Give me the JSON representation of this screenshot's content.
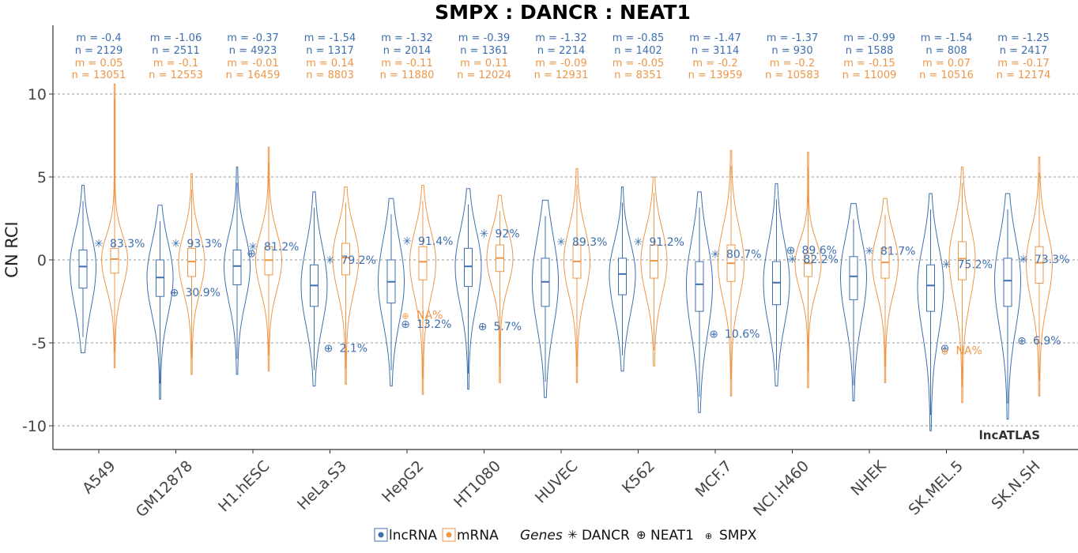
{
  "chart_data": {
    "type": "violin",
    "title": "SMPX : DANCR : NEAT1",
    "ylabel": "CN RCI",
    "xlabel": "",
    "ylim": [
      -11,
      13.7
    ],
    "yticks": [
      10,
      5,
      0,
      -5,
      -10
    ],
    "ytick_labels": [
      "10",
      "5",
      "0",
      "-5",
      "-10"
    ],
    "grid": "horizontal dashed",
    "watermark": "lncATLAS",
    "colors": {
      "lncRNA": "#3d6faf",
      "mRNA": "#ee9645"
    },
    "legend": {
      "position": "bottom",
      "fill_entries": [
        "lncRNA",
        "mRNA"
      ],
      "genes_title": "Genes",
      "genes": [
        {
          "name": "DANCR",
          "symbol": "✳"
        },
        {
          "name": "NEAT1",
          "symbol": "⊕"
        },
        {
          "name": "SMPX",
          "symbol": "⊕"
        }
      ]
    },
    "categories": [
      "A549",
      "GM12878",
      "H1.hESC",
      "HeLa.S3",
      "HepG2",
      "HT1080",
      "HUVEC",
      "K562",
      "MCF.7",
      "NCI.H460",
      "NHEK",
      "SK.MEL.5",
      "SK.N.SH"
    ],
    "stats": [
      {
        "lnc_m": "m = -0.4",
        "lnc_n": "n = 2129",
        "mrna_m": "m = 0.05",
        "mrna_n": "n = 13051"
      },
      {
        "lnc_m": "m = -1.06",
        "lnc_n": "n = 2511",
        "mrna_m": "m = -0.1",
        "mrna_n": "n = 12553"
      },
      {
        "lnc_m": "m = -0.37",
        "lnc_n": "n = 4923",
        "mrna_m": "m = -0.01",
        "mrna_n": "n = 16459"
      },
      {
        "lnc_m": "m = -1.54",
        "lnc_n": "n = 1317",
        "mrna_m": "m = 0.14",
        "mrna_n": "n = 8803"
      },
      {
        "lnc_m": "m = -1.32",
        "lnc_n": "n = 2014",
        "mrna_m": "m = -0.11",
        "mrna_n": "n = 11880"
      },
      {
        "lnc_m": "m = -0.39",
        "lnc_n": "n = 1361",
        "mrna_m": "m = 0.11",
        "mrna_n": "n = 12024"
      },
      {
        "lnc_m": "m = -1.32",
        "lnc_n": "n = 2214",
        "mrna_m": "m = -0.09",
        "mrna_n": "n = 12931"
      },
      {
        "lnc_m": "m = -0.85",
        "lnc_n": "n = 1402",
        "mrna_m": "m = -0.05",
        "mrna_n": "n = 8351"
      },
      {
        "lnc_m": "m = -1.47",
        "lnc_n": "n = 3114",
        "mrna_m": "m = -0.2",
        "mrna_n": "n = 13959"
      },
      {
        "lnc_m": "m = -1.37",
        "lnc_n": "n = 930",
        "mrna_m": "m = -0.2",
        "mrna_n": "n = 10583"
      },
      {
        "lnc_m": "m = -0.99",
        "lnc_n": "n = 1588",
        "mrna_m": "m = -0.15",
        "mrna_n": "n = 11009"
      },
      {
        "lnc_m": "m = -1.54",
        "lnc_n": "n = 808",
        "mrna_m": "m = 0.07",
        "mrna_n": "n = 10516"
      },
      {
        "lnc_m": "m = -1.25",
        "lnc_n": "n = 2417",
        "mrna_m": "m = -0.17",
        "mrna_n": "n = 12174"
      }
    ],
    "series": [
      {
        "name": "lncRNA",
        "boxes": [
          {
            "median": -0.4,
            "q1": -1.7,
            "q3": 0.6,
            "min": -5.6,
            "max": 4.5
          },
          {
            "median": -1.06,
            "q1": -2.2,
            "q3": 0.0,
            "min": -8.4,
            "max": 3.3
          },
          {
            "median": -0.37,
            "q1": -1.5,
            "q3": 0.6,
            "min": -6.9,
            "max": 5.6
          },
          {
            "median": -1.54,
            "q1": -2.8,
            "q3": -0.3,
            "min": -7.6,
            "max": 4.1
          },
          {
            "median": -1.32,
            "q1": -2.6,
            "q3": 0.0,
            "min": -7.6,
            "max": 3.7
          },
          {
            "median": -0.39,
            "q1": -1.6,
            "q3": 0.7,
            "min": -7.8,
            "max": 4.3
          },
          {
            "median": -1.32,
            "q1": -2.8,
            "q3": 0.1,
            "min": -8.3,
            "max": 3.6
          },
          {
            "median": -0.85,
            "q1": -2.1,
            "q3": 0.1,
            "min": -6.7,
            "max": 4.4
          },
          {
            "median": -1.47,
            "q1": -3.1,
            "q3": -0.1,
            "min": -9.2,
            "max": 4.1
          },
          {
            "median": -1.37,
            "q1": -2.7,
            "q3": -0.1,
            "min": -7.6,
            "max": 4.6
          },
          {
            "median": -0.99,
            "q1": -2.4,
            "q3": 0.2,
            "min": -8.5,
            "max": 3.4
          },
          {
            "median": -1.54,
            "q1": -3.1,
            "q3": -0.3,
            "min": -10.3,
            "max": 4.0
          },
          {
            "median": -1.25,
            "q1": -2.8,
            "q3": 0.1,
            "min": -9.6,
            "max": 4.0
          }
        ]
      },
      {
        "name": "mRNA",
        "boxes": [
          {
            "median": 0.05,
            "q1": -0.8,
            "q3": 0.7,
            "min": -6.5,
            "max": 10.6
          },
          {
            "median": -0.1,
            "q1": -1.0,
            "q3": 0.7,
            "min": -6.9,
            "max": 5.2
          },
          {
            "median": -0.01,
            "q1": -0.9,
            "q3": 0.8,
            "min": -6.7,
            "max": 6.8
          },
          {
            "median": 0.14,
            "q1": -0.9,
            "q3": 1.0,
            "min": -7.5,
            "max": 4.4
          },
          {
            "median": -0.11,
            "q1": -1.2,
            "q3": 0.8,
            "min": -8.1,
            "max": 4.5
          },
          {
            "median": 0.11,
            "q1": -0.7,
            "q3": 0.9,
            "min": -7.4,
            "max": 3.9
          },
          {
            "median": -0.09,
            "q1": -1.1,
            "q3": 0.9,
            "min": -7.4,
            "max": 5.5
          },
          {
            "median": -0.05,
            "q1": -1.1,
            "q3": 0.9,
            "min": -6.4,
            "max": 5.0
          },
          {
            "median": -0.2,
            "q1": -1.3,
            "q3": 0.9,
            "min": -8.2,
            "max": 6.6
          },
          {
            "median": -0.2,
            "q1": -1.0,
            "q3": 0.4,
            "min": -7.7,
            "max": 6.5
          },
          {
            "median": -0.15,
            "q1": -1.1,
            "q3": 0.7,
            "min": -7.4,
            "max": 3.7
          },
          {
            "median": 0.07,
            "q1": -1.2,
            "q3": 1.1,
            "min": -8.6,
            "max": 5.6
          },
          {
            "median": -0.17,
            "q1": -1.4,
            "q3": 0.8,
            "min": -8.2,
            "max": 6.2
          }
        ]
      }
    ],
    "gene_markers": [
      {
        "gene": "DANCR",
        "category": "A549",
        "y": 1.0,
        "label": "83.3%",
        "color": "lncRNA"
      },
      {
        "gene": "DANCR",
        "category": "GM12878",
        "y": 1.0,
        "label": "93.3%",
        "color": "lncRNA"
      },
      {
        "gene": "NEAT1",
        "category": "GM12878",
        "y": -1.95,
        "label": "30.9%",
        "color": "lncRNA"
      },
      {
        "gene": "DANCR",
        "category": "H1.hESC",
        "y": 0.8,
        "label": "81.2%",
        "color": "lncRNA"
      },
      {
        "gene": "NEAT1",
        "category": "H1.hESC",
        "y": 0.4,
        "label": "",
        "color": "lncRNA"
      },
      {
        "gene": "DANCR",
        "category": "HeLa.S3",
        "y": 0.0,
        "label": "79.2%",
        "color": "lncRNA"
      },
      {
        "gene": "NEAT1",
        "category": "HeLa.S3",
        "y": -5.3,
        "label": "2.1%",
        "color": "lncRNA"
      },
      {
        "gene": "DANCR",
        "category": "HepG2",
        "y": 1.15,
        "label": "91.4%",
        "color": "lncRNA"
      },
      {
        "gene": "SMPX",
        "category": "HepG2",
        "y": -3.3,
        "label": "NA%",
        "color": "mRNA"
      },
      {
        "gene": "NEAT1",
        "category": "HepG2",
        "y": -3.85,
        "label": "13.2%",
        "color": "lncRNA"
      },
      {
        "gene": "DANCR",
        "category": "HT1080",
        "y": 1.6,
        "label": "92%",
        "color": "lncRNA"
      },
      {
        "gene": "NEAT1",
        "category": "HT1080",
        "y": -4.0,
        "label": "5.7%",
        "color": "lncRNA"
      },
      {
        "gene": "DANCR",
        "category": "HUVEC",
        "y": 1.1,
        "label": "89.3%",
        "color": "lncRNA"
      },
      {
        "gene": "DANCR",
        "category": "K562",
        "y": 1.1,
        "label": "91.2%",
        "color": "lncRNA"
      },
      {
        "gene": "DANCR",
        "category": "MCF.7",
        "y": 0.35,
        "label": "80.7%",
        "color": "lncRNA"
      },
      {
        "gene": "NEAT1",
        "category": "MCF.7",
        "y": -4.45,
        "label": "10.6%",
        "color": "lncRNA"
      },
      {
        "gene": "NEAT1",
        "category": "NCI.H460",
        "y": 0.6,
        "label": "89.6%",
        "color": "lncRNA"
      },
      {
        "gene": "DANCR",
        "category": "NCI.H460",
        "y": 0.05,
        "label": "82.2%",
        "color": "lncRNA"
      },
      {
        "gene": "DANCR",
        "category": "NHEK",
        "y": 0.55,
        "label": "81.7%",
        "color": "lncRNA"
      },
      {
        "gene": "DANCR",
        "category": "SK.MEL.5",
        "y": -0.25,
        "label": "75.2%",
        "color": "lncRNA"
      },
      {
        "gene": "NEAT1",
        "category": "SK.MEL.5",
        "y": -5.3,
        "label": "",
        "color": "lncRNA"
      },
      {
        "gene": "SMPX",
        "category": "SK.MEL.5",
        "y": -5.45,
        "label": "NA%",
        "color": "mRNA"
      },
      {
        "gene": "DANCR",
        "category": "SK.N.SH",
        "y": 0.05,
        "label": "73.3%",
        "color": "lncRNA"
      },
      {
        "gene": "NEAT1",
        "category": "SK.N.SH",
        "y": -4.85,
        "label": "6.9%",
        "color": "lncRNA"
      }
    ]
  }
}
